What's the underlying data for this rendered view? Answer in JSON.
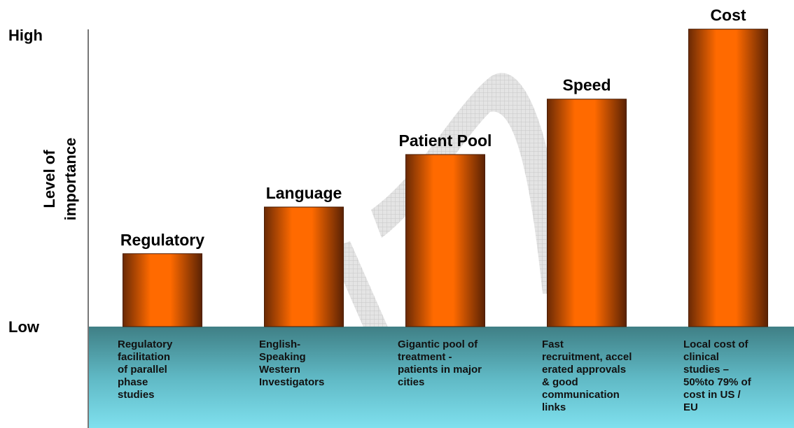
{
  "chart_data": {
    "type": "bar",
    "y_label": [
      "Level of",
      "importance"
    ],
    "categories": [
      "Regulatory",
      "Language",
      "Patient Pool",
      "Speed",
      "Cost"
    ],
    "values": [
      25,
      41,
      59,
      78,
      102
    ],
    "ylim": [
      0,
      102
    ],
    "yticks": [
      {
        "value": 0,
        "label": "Low"
      },
      {
        "value": 100,
        "label": "High"
      }
    ],
    "color": "#ff6600",
    "descriptions": [
      [
        "Regulatory",
        "facilitation",
        "of parallel",
        "phase",
        "studies"
      ],
      [
        "English-",
        "Speaking",
        "Western",
        "Investigators"
      ],
      [
        "Gigantic pool of",
        "treatment -",
        "patients in major",
        "cities"
      ],
      [
        "Fast",
        "recruitment, accel",
        "erated approvals",
        "& good",
        "communication",
        "links"
      ],
      [
        "Local cost of",
        "clinical",
        "studies –",
        "50%to 79% of",
        "cost in US /",
        "EU"
      ]
    ]
  }
}
